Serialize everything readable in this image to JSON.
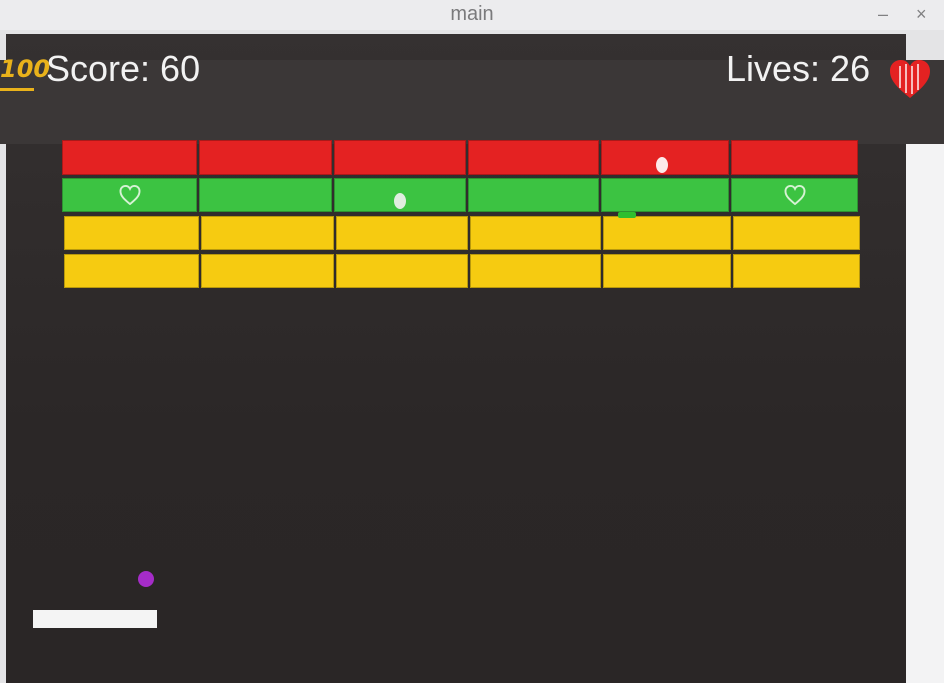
{
  "window": {
    "title": "main",
    "minimize_label": "–",
    "close_label": "×"
  },
  "hud": {
    "score_icon_text": "100",
    "score_text": "Score: 60",
    "lives_text": "Lives: 26",
    "icons": [
      "hundred-points-icon",
      "heart-icon"
    ]
  },
  "colors": {
    "red": "#e42222",
    "green": "#3cc342",
    "yellow": "#f6cb11",
    "ball": "#a52cc8",
    "paddle": "#f4f4f4",
    "background": "#2b2727"
  },
  "bricks": {
    "rows": [
      "red",
      "green",
      "yellow",
      "yellow"
    ],
    "columns": 6,
    "powerups": [
      {
        "row": 1,
        "col": 0,
        "type": "heart"
      },
      {
        "row": 1,
        "col": 5,
        "type": "heart"
      }
    ]
  }
}
